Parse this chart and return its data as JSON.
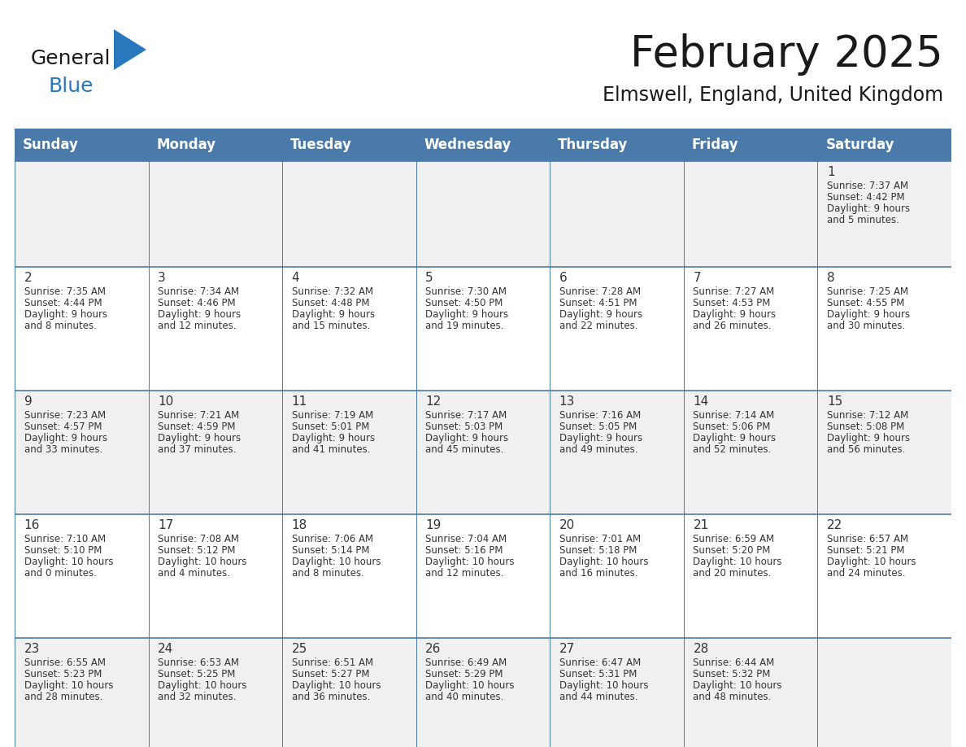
{
  "title": "February 2025",
  "subtitle": "Elmswell, England, United Kingdom",
  "header_bg": "#4a7aaa",
  "header_text": "#ffffff",
  "cell_bg_light": "#f0f0f0",
  "cell_bg_white": "#ffffff",
  "cell_border": "#4a7aaa",
  "day_headers": [
    "Sunday",
    "Monday",
    "Tuesday",
    "Wednesday",
    "Thursday",
    "Friday",
    "Saturday"
  ],
  "days": [
    {
      "day": 1,
      "col": 6,
      "row": 0,
      "sunrise": "7:37 AM",
      "sunset": "4:42 PM",
      "daylight": "9 hours and 5 minutes"
    },
    {
      "day": 2,
      "col": 0,
      "row": 1,
      "sunrise": "7:35 AM",
      "sunset": "4:44 PM",
      "daylight": "9 hours and 8 minutes"
    },
    {
      "day": 3,
      "col": 1,
      "row": 1,
      "sunrise": "7:34 AM",
      "sunset": "4:46 PM",
      "daylight": "9 hours and 12 minutes"
    },
    {
      "day": 4,
      "col": 2,
      "row": 1,
      "sunrise": "7:32 AM",
      "sunset": "4:48 PM",
      "daylight": "9 hours and 15 minutes"
    },
    {
      "day": 5,
      "col": 3,
      "row": 1,
      "sunrise": "7:30 AM",
      "sunset": "4:50 PM",
      "daylight": "9 hours and 19 minutes"
    },
    {
      "day": 6,
      "col": 4,
      "row": 1,
      "sunrise": "7:28 AM",
      "sunset": "4:51 PM",
      "daylight": "9 hours and 22 minutes"
    },
    {
      "day": 7,
      "col": 5,
      "row": 1,
      "sunrise": "7:27 AM",
      "sunset": "4:53 PM",
      "daylight": "9 hours and 26 minutes"
    },
    {
      "day": 8,
      "col": 6,
      "row": 1,
      "sunrise": "7:25 AM",
      "sunset": "4:55 PM",
      "daylight": "9 hours and 30 minutes"
    },
    {
      "day": 9,
      "col": 0,
      "row": 2,
      "sunrise": "7:23 AM",
      "sunset": "4:57 PM",
      "daylight": "9 hours and 33 minutes"
    },
    {
      "day": 10,
      "col": 1,
      "row": 2,
      "sunrise": "7:21 AM",
      "sunset": "4:59 PM",
      "daylight": "9 hours and 37 minutes"
    },
    {
      "day": 11,
      "col": 2,
      "row": 2,
      "sunrise": "7:19 AM",
      "sunset": "5:01 PM",
      "daylight": "9 hours and 41 minutes"
    },
    {
      "day": 12,
      "col": 3,
      "row": 2,
      "sunrise": "7:17 AM",
      "sunset": "5:03 PM",
      "daylight": "9 hours and 45 minutes"
    },
    {
      "day": 13,
      "col": 4,
      "row": 2,
      "sunrise": "7:16 AM",
      "sunset": "5:05 PM",
      "daylight": "9 hours and 49 minutes"
    },
    {
      "day": 14,
      "col": 5,
      "row": 2,
      "sunrise": "7:14 AM",
      "sunset": "5:06 PM",
      "daylight": "9 hours and 52 minutes"
    },
    {
      "day": 15,
      "col": 6,
      "row": 2,
      "sunrise": "7:12 AM",
      "sunset": "5:08 PM",
      "daylight": "9 hours and 56 minutes"
    },
    {
      "day": 16,
      "col": 0,
      "row": 3,
      "sunrise": "7:10 AM",
      "sunset": "5:10 PM",
      "daylight": "10 hours and 0 minutes"
    },
    {
      "day": 17,
      "col": 1,
      "row": 3,
      "sunrise": "7:08 AM",
      "sunset": "5:12 PM",
      "daylight": "10 hours and 4 minutes"
    },
    {
      "day": 18,
      "col": 2,
      "row": 3,
      "sunrise": "7:06 AM",
      "sunset": "5:14 PM",
      "daylight": "10 hours and 8 minutes"
    },
    {
      "day": 19,
      "col": 3,
      "row": 3,
      "sunrise": "7:04 AM",
      "sunset": "5:16 PM",
      "daylight": "10 hours and 12 minutes"
    },
    {
      "day": 20,
      "col": 4,
      "row": 3,
      "sunrise": "7:01 AM",
      "sunset": "5:18 PM",
      "daylight": "10 hours and 16 minutes"
    },
    {
      "day": 21,
      "col": 5,
      "row": 3,
      "sunrise": "6:59 AM",
      "sunset": "5:20 PM",
      "daylight": "10 hours and 20 minutes"
    },
    {
      "day": 22,
      "col": 6,
      "row": 3,
      "sunrise": "6:57 AM",
      "sunset": "5:21 PM",
      "daylight": "10 hours and 24 minutes"
    },
    {
      "day": 23,
      "col": 0,
      "row": 4,
      "sunrise": "6:55 AM",
      "sunset": "5:23 PM",
      "daylight": "10 hours and 28 minutes"
    },
    {
      "day": 24,
      "col": 1,
      "row": 4,
      "sunrise": "6:53 AM",
      "sunset": "5:25 PM",
      "daylight": "10 hours and 32 minutes"
    },
    {
      "day": 25,
      "col": 2,
      "row": 4,
      "sunrise": "6:51 AM",
      "sunset": "5:27 PM",
      "daylight": "10 hours and 36 minutes"
    },
    {
      "day": 26,
      "col": 3,
      "row": 4,
      "sunrise": "6:49 AM",
      "sunset": "5:29 PM",
      "daylight": "10 hours and 40 minutes"
    },
    {
      "day": 27,
      "col": 4,
      "row": 4,
      "sunrise": "6:47 AM",
      "sunset": "5:31 PM",
      "daylight": "10 hours and 44 minutes"
    },
    {
      "day": 28,
      "col": 5,
      "row": 4,
      "sunrise": "6:44 AM",
      "sunset": "5:32 PM",
      "daylight": "10 hours and 48 minutes"
    }
  ],
  "logo_text1_color": "#1a1a1a",
  "logo_text2_color": "#2878be",
  "logo_triangle_color": "#2878be",
  "title_fontsize": 38,
  "subtitle_fontsize": 17,
  "header_fontsize": 12,
  "day_num_fontsize": 11,
  "cell_text_fontsize": 8.5
}
